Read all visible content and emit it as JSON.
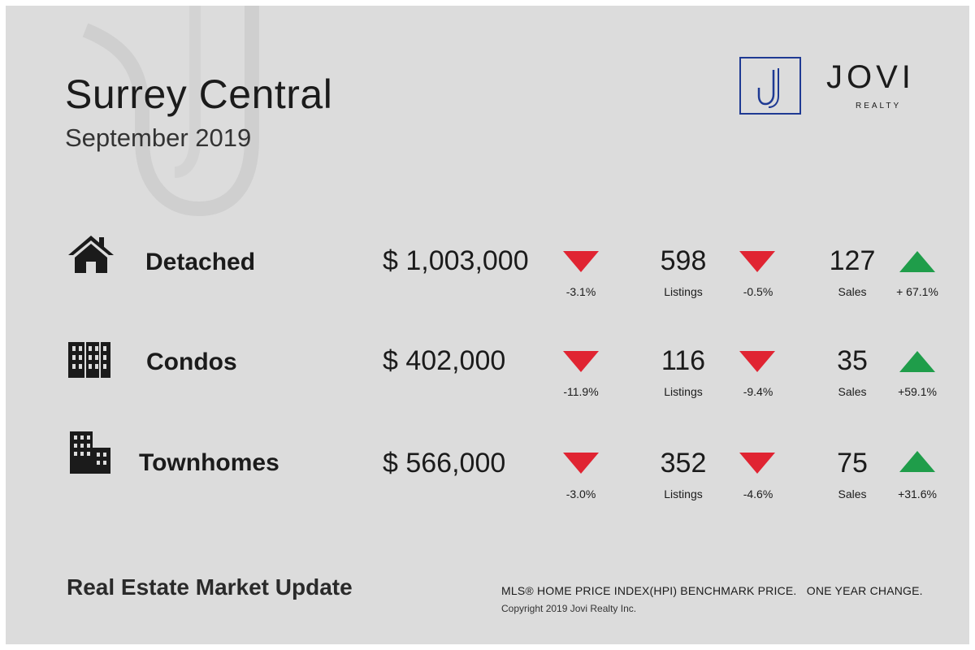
{
  "header": {
    "title": "Surrey Central",
    "subtitle": "September 2019"
  },
  "brand": {
    "name": "JOVI",
    "sub": "REALTY",
    "color": "#1f3a93"
  },
  "colors": {
    "down": "#e02432",
    "up": "#1f9d4a"
  },
  "rows": [
    {
      "category": "Detached",
      "icon": "house-icon",
      "price": "$ 1,003,000",
      "price_change": "-3.1%",
      "price_trend": "down",
      "listings": "598",
      "listings_label": "Listings",
      "listings_change": "-0.5%",
      "listings_trend": "down",
      "sales": "127",
      "sales_label": "Sales",
      "sales_change": "+ 67.1%",
      "sales_trend": "up"
    },
    {
      "category": "Condos",
      "icon": "condo-building-icon",
      "price": "$ 402,000",
      "price_change": "-11.9%",
      "price_trend": "down",
      "listings": "116",
      "listings_label": "Listings",
      "listings_change": "-9.4%",
      "listings_trend": "down",
      "sales": "35",
      "sales_label": "Sales",
      "sales_change": "+59.1%",
      "sales_trend": "up"
    },
    {
      "category": "Townhomes",
      "icon": "townhome-building-icon",
      "price": "$ 566,000",
      "price_change": "-3.0%",
      "price_trend": "down",
      "listings": "352",
      "listings_label": "Listings",
      "listings_change": "-4.6%",
      "listings_trend": "down",
      "sales": "75",
      "sales_label": "Sales",
      "sales_change": "+31.6%",
      "sales_trend": "up"
    }
  ],
  "footer": {
    "title": "Real Estate Market Update",
    "note": "MLS® HOME PRICE INDEX(HPI) BENCHMARK PRICE.   ONE YEAR CHANGE.",
    "copyright": "Copyright 2019 Jovi Realty Inc."
  }
}
